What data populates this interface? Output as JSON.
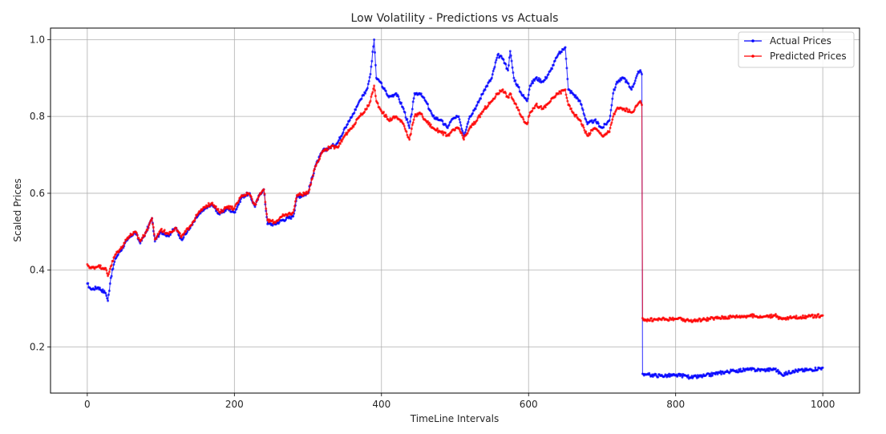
{
  "chart_data": {
    "type": "line",
    "title": "Low Volatility - Predictions vs Actuals",
    "xlabel": "TimeLine Intervals",
    "ylabel": "Scaled Prices",
    "xlim": [
      -50,
      1050
    ],
    "ylim": [
      0.08,
      1.03
    ],
    "xticks": [
      0,
      200,
      400,
      600,
      800,
      1000
    ],
    "yticks": [
      0.2,
      0.4,
      0.6,
      0.8,
      1.0
    ],
    "grid": true,
    "legend_position": "top-right",
    "series": [
      {
        "name": "Actual Prices",
        "color": "#0000ff",
        "keypoints": [
          [
            0,
            0.365
          ],
          [
            5,
            0.35
          ],
          [
            15,
            0.355
          ],
          [
            25,
            0.34
          ],
          [
            28,
            0.32
          ],
          [
            32,
            0.38
          ],
          [
            38,
            0.43
          ],
          [
            45,
            0.45
          ],
          [
            55,
            0.48
          ],
          [
            65,
            0.5
          ],
          [
            72,
            0.47
          ],
          [
            80,
            0.5
          ],
          [
            88,
            0.535
          ],
          [
            92,
            0.475
          ],
          [
            100,
            0.5
          ],
          [
            110,
            0.49
          ],
          [
            120,
            0.51
          ],
          [
            128,
            0.48
          ],
          [
            140,
            0.51
          ],
          [
            150,
            0.54
          ],
          [
            160,
            0.56
          ],
          [
            170,
            0.57
          ],
          [
            180,
            0.545
          ],
          [
            190,
            0.56
          ],
          [
            200,
            0.55
          ],
          [
            210,
            0.59
          ],
          [
            220,
            0.6
          ],
          [
            228,
            0.565
          ],
          [
            235,
            0.6
          ],
          [
            240,
            0.61
          ],
          [
            245,
            0.52
          ],
          [
            255,
            0.52
          ],
          [
            265,
            0.53
          ],
          [
            280,
            0.54
          ],
          [
            285,
            0.59
          ],
          [
            300,
            0.6
          ],
          [
            310,
            0.67
          ],
          [
            320,
            0.71
          ],
          [
            330,
            0.72
          ],
          [
            340,
            0.73
          ],
          [
            350,
            0.77
          ],
          [
            360,
            0.8
          ],
          [
            370,
            0.84
          ],
          [
            380,
            0.87
          ],
          [
            385,
            0.91
          ],
          [
            390,
            1.0
          ],
          [
            393,
            0.9
          ],
          [
            398,
            0.89
          ],
          [
            410,
            0.85
          ],
          [
            420,
            0.86
          ],
          [
            430,
            0.82
          ],
          [
            438,
            0.77
          ],
          [
            445,
            0.86
          ],
          [
            452,
            0.86
          ],
          [
            460,
            0.84
          ],
          [
            470,
            0.8
          ],
          [
            480,
            0.79
          ],
          [
            490,
            0.77
          ],
          [
            495,
            0.79
          ],
          [
            505,
            0.8
          ],
          [
            512,
            0.75
          ],
          [
            520,
            0.8
          ],
          [
            530,
            0.83
          ],
          [
            540,
            0.87
          ],
          [
            550,
            0.9
          ],
          [
            558,
            0.96
          ],
          [
            565,
            0.95
          ],
          [
            572,
            0.92
          ],
          [
            575,
            0.97
          ],
          [
            580,
            0.9
          ],
          [
            590,
            0.86
          ],
          [
            598,
            0.84
          ],
          [
            602,
            0.88
          ],
          [
            610,
            0.9
          ],
          [
            620,
            0.89
          ],
          [
            630,
            0.92
          ],
          [
            640,
            0.96
          ],
          [
            650,
            0.98
          ],
          [
            654,
            0.87
          ],
          [
            660,
            0.86
          ],
          [
            670,
            0.84
          ],
          [
            680,
            0.78
          ],
          [
            690,
            0.79
          ],
          [
            700,
            0.77
          ],
          [
            710,
            0.79
          ],
          [
            715,
            0.86
          ],
          [
            720,
            0.89
          ],
          [
            730,
            0.9
          ],
          [
            740,
            0.87
          ],
          [
            748,
            0.91
          ],
          [
            752,
            0.92
          ],
          [
            754,
            0.91
          ],
          [
            755,
            0.13
          ],
          [
            760,
            0.128
          ],
          [
            780,
            0.125
          ],
          [
            800,
            0.126
          ],
          [
            815,
            0.125
          ],
          [
            820,
            0.12
          ],
          [
            840,
            0.125
          ],
          [
            860,
            0.133
          ],
          [
            880,
            0.138
          ],
          [
            900,
            0.141
          ],
          [
            920,
            0.14
          ],
          [
            935,
            0.142
          ],
          [
            945,
            0.127
          ],
          [
            960,
            0.138
          ],
          [
            980,
            0.14
          ],
          [
            1000,
            0.146
          ]
        ]
      },
      {
        "name": "Predicted Prices",
        "color": "#ff0000",
        "keypoints": [
          [
            0,
            0.415
          ],
          [
            5,
            0.405
          ],
          [
            15,
            0.41
          ],
          [
            25,
            0.405
          ],
          [
            28,
            0.385
          ],
          [
            32,
            0.41
          ],
          [
            38,
            0.44
          ],
          [
            45,
            0.455
          ],
          [
            55,
            0.485
          ],
          [
            65,
            0.5
          ],
          [
            72,
            0.475
          ],
          [
            80,
            0.5
          ],
          [
            88,
            0.535
          ],
          [
            92,
            0.48
          ],
          [
            100,
            0.505
          ],
          [
            110,
            0.495
          ],
          [
            120,
            0.51
          ],
          [
            128,
            0.485
          ],
          [
            140,
            0.515
          ],
          [
            150,
            0.545
          ],
          [
            160,
            0.565
          ],
          [
            170,
            0.575
          ],
          [
            180,
            0.55
          ],
          [
            190,
            0.565
          ],
          [
            200,
            0.56
          ],
          [
            210,
            0.595
          ],
          [
            220,
            0.6
          ],
          [
            228,
            0.57
          ],
          [
            235,
            0.6
          ],
          [
            240,
            0.61
          ],
          [
            245,
            0.53
          ],
          [
            255,
            0.525
          ],
          [
            265,
            0.54
          ],
          [
            280,
            0.55
          ],
          [
            285,
            0.595
          ],
          [
            300,
            0.6
          ],
          [
            310,
            0.67
          ],
          [
            320,
            0.71
          ],
          [
            330,
            0.72
          ],
          [
            340,
            0.72
          ],
          [
            350,
            0.75
          ],
          [
            360,
            0.77
          ],
          [
            370,
            0.8
          ],
          [
            380,
            0.82
          ],
          [
            385,
            0.84
          ],
          [
            390,
            0.88
          ],
          [
            393,
            0.84
          ],
          [
            398,
            0.82
          ],
          [
            410,
            0.79
          ],
          [
            420,
            0.8
          ],
          [
            430,
            0.78
          ],
          [
            438,
            0.74
          ],
          [
            445,
            0.8
          ],
          [
            452,
            0.81
          ],
          [
            460,
            0.79
          ],
          [
            470,
            0.77
          ],
          [
            480,
            0.76
          ],
          [
            490,
            0.75
          ],
          [
            495,
            0.76
          ],
          [
            505,
            0.77
          ],
          [
            512,
            0.74
          ],
          [
            520,
            0.77
          ],
          [
            530,
            0.79
          ],
          [
            540,
            0.82
          ],
          [
            550,
            0.84
          ],
          [
            558,
            0.86
          ],
          [
            565,
            0.87
          ],
          [
            572,
            0.85
          ],
          [
            575,
            0.86
          ],
          [
            580,
            0.84
          ],
          [
            590,
            0.8
          ],
          [
            598,
            0.78
          ],
          [
            602,
            0.81
          ],
          [
            610,
            0.83
          ],
          [
            620,
            0.82
          ],
          [
            630,
            0.84
          ],
          [
            640,
            0.86
          ],
          [
            650,
            0.87
          ],
          [
            654,
            0.83
          ],
          [
            660,
            0.81
          ],
          [
            670,
            0.79
          ],
          [
            680,
            0.75
          ],
          [
            690,
            0.77
          ],
          [
            700,
            0.75
          ],
          [
            710,
            0.76
          ],
          [
            715,
            0.8
          ],
          [
            720,
            0.82
          ],
          [
            730,
            0.82
          ],
          [
            740,
            0.81
          ],
          [
            748,
            0.83
          ],
          [
            752,
            0.84
          ],
          [
            754,
            0.83
          ],
          [
            755,
            0.275
          ],
          [
            760,
            0.27
          ],
          [
            780,
            0.272
          ],
          [
            800,
            0.273
          ],
          [
            815,
            0.27
          ],
          [
            820,
            0.268
          ],
          [
            840,
            0.272
          ],
          [
            860,
            0.276
          ],
          [
            880,
            0.279
          ],
          [
            900,
            0.281
          ],
          [
            920,
            0.279
          ],
          [
            935,
            0.282
          ],
          [
            945,
            0.272
          ],
          [
            960,
            0.277
          ],
          [
            980,
            0.279
          ],
          [
            1000,
            0.282
          ]
        ]
      }
    ]
  }
}
